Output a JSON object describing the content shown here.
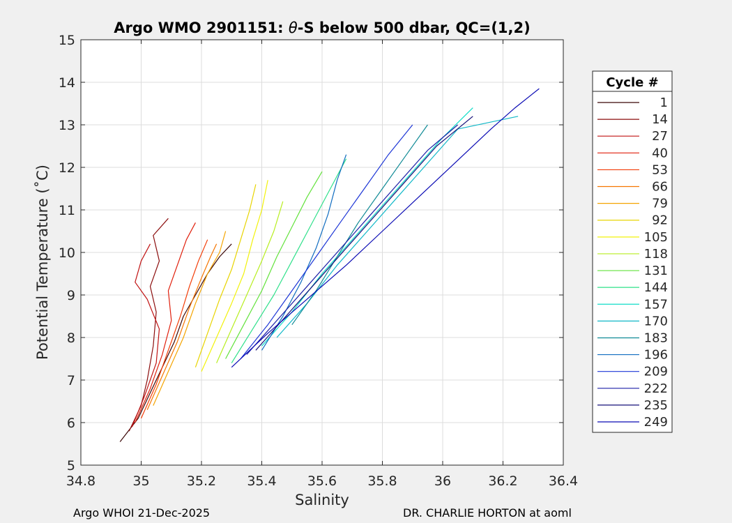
{
  "chart_data": {
    "type": "line",
    "title_prefix": "Argo WMO 2901151: ",
    "title_theta": "θ",
    "title_suffix": "-S below 500 dbar,  QC=(1,2)",
    "xlabel": "Salinity",
    "ylabel": "Potential Temperature (˚C)",
    "xlim": [
      34.8,
      36.4
    ],
    "ylim": [
      5,
      15
    ],
    "xticks": [
      34.8,
      35,
      35.2,
      35.4,
      35.6,
      35.8,
      36,
      36.2,
      36.4
    ],
    "yticks": [
      5,
      6,
      7,
      8,
      9,
      10,
      11,
      12,
      13,
      14,
      15
    ],
    "xtick_labels": [
      "34.8",
      "35",
      "35.2",
      "35.4",
      "35.6",
      "35.8",
      "36",
      "36.2",
      "36.4"
    ],
    "ytick_labels": [
      "5",
      "6",
      "7",
      "8",
      "9",
      "10",
      "11",
      "12",
      "13",
      "14",
      "15"
    ],
    "grid": true,
    "legend_title": "Cycle #",
    "legend_position": "right",
    "series": [
      {
        "name": "1",
        "color": "#3a0606",
        "points": [
          [
            34.93,
            5.55
          ],
          [
            34.99,
            6.1
          ],
          [
            35.03,
            6.7
          ],
          [
            35.07,
            7.3
          ],
          [
            35.11,
            7.9
          ],
          [
            35.14,
            8.5
          ],
          [
            35.18,
            9.0
          ],
          [
            35.22,
            9.5
          ],
          [
            35.26,
            9.9
          ],
          [
            35.3,
            10.2
          ]
        ]
      },
      {
        "name": "14",
        "color": "#8b0d0d",
        "points": [
          [
            34.96,
            5.8
          ],
          [
            35.0,
            6.4
          ],
          [
            35.02,
            7.0
          ],
          [
            35.04,
            7.8
          ],
          [
            35.05,
            8.6
          ],
          [
            35.03,
            9.2
          ],
          [
            35.06,
            9.8
          ],
          [
            35.04,
            10.4
          ],
          [
            35.09,
            10.8
          ]
        ]
      },
      {
        "name": "27",
        "color": "#c01212",
        "points": [
          [
            34.97,
            5.9
          ],
          [
            35.01,
            6.6
          ],
          [
            35.05,
            7.4
          ],
          [
            35.06,
            8.2
          ],
          [
            35.02,
            8.9
          ],
          [
            34.98,
            9.3
          ],
          [
            35.0,
            9.8
          ],
          [
            35.03,
            10.2
          ]
        ]
      },
      {
        "name": "40",
        "color": "#e01f0c",
        "points": [
          [
            34.98,
            6.0
          ],
          [
            35.03,
            6.8
          ],
          [
            35.07,
            7.6
          ],
          [
            35.1,
            8.4
          ],
          [
            35.09,
            9.1
          ],
          [
            35.12,
            9.7
          ],
          [
            35.15,
            10.3
          ],
          [
            35.18,
            10.7
          ]
        ]
      },
      {
        "name": "53",
        "color": "#f23c07",
        "points": [
          [
            35.0,
            6.1
          ],
          [
            35.05,
            6.9
          ],
          [
            35.09,
            7.7
          ],
          [
            35.13,
            8.5
          ],
          [
            35.16,
            9.2
          ],
          [
            35.19,
            9.8
          ],
          [
            35.22,
            10.3
          ]
        ]
      },
      {
        "name": "66",
        "color": "#f57500",
        "points": [
          [
            35.02,
            6.3
          ],
          [
            35.07,
            7.1
          ],
          [
            35.12,
            7.9
          ],
          [
            35.16,
            8.7
          ],
          [
            35.2,
            9.4
          ],
          [
            35.23,
            9.9
          ],
          [
            35.25,
            10.2
          ]
        ]
      },
      {
        "name": "79",
        "color": "#f4a400",
        "points": [
          [
            35.04,
            6.4
          ],
          [
            35.09,
            7.2
          ],
          [
            35.14,
            8.0
          ],
          [
            35.18,
            8.8
          ],
          [
            35.22,
            9.5
          ],
          [
            35.26,
            10.0
          ],
          [
            35.28,
            10.5
          ]
        ]
      },
      {
        "name": "92",
        "color": "#e8d400",
        "points": [
          [
            35.18,
            7.3
          ],
          [
            35.22,
            8.1
          ],
          [
            35.26,
            8.9
          ],
          [
            35.3,
            9.6
          ],
          [
            35.33,
            10.3
          ],
          [
            35.36,
            11.0
          ],
          [
            35.38,
            11.6
          ]
        ]
      },
      {
        "name": "105",
        "color": "#f2f20a",
        "points": [
          [
            35.2,
            7.2
          ],
          [
            35.25,
            8.0
          ],
          [
            35.3,
            8.8
          ],
          [
            35.34,
            9.5
          ],
          [
            35.37,
            10.3
          ],
          [
            35.4,
            11.0
          ],
          [
            35.42,
            11.7
          ]
        ]
      },
      {
        "name": "118",
        "color": "#b7ee1f",
        "points": [
          [
            35.25,
            7.4
          ],
          [
            35.3,
            8.2
          ],
          [
            35.35,
            9.0
          ],
          [
            35.4,
            9.8
          ],
          [
            35.44,
            10.5
          ],
          [
            35.47,
            11.2
          ]
        ]
      },
      {
        "name": "131",
        "color": "#62e23b",
        "points": [
          [
            35.28,
            7.5
          ],
          [
            35.34,
            8.3
          ],
          [
            35.4,
            9.1
          ],
          [
            35.45,
            9.9
          ],
          [
            35.5,
            10.6
          ],
          [
            35.55,
            11.3
          ],
          [
            35.6,
            11.9
          ]
        ]
      },
      {
        "name": "144",
        "color": "#2ee08a",
        "points": [
          [
            35.3,
            7.4
          ],
          [
            35.37,
            8.2
          ],
          [
            35.44,
            9.0
          ],
          [
            35.5,
            9.8
          ],
          [
            35.56,
            10.6
          ],
          [
            35.62,
            11.4
          ],
          [
            35.68,
            12.2
          ]
        ]
      },
      {
        "name": "157",
        "color": "#10ddc8",
        "points": [
          [
            35.4,
            7.8
          ],
          [
            35.5,
            8.6
          ],
          [
            35.6,
            9.5
          ],
          [
            35.7,
            10.3
          ],
          [
            35.8,
            11.1
          ],
          [
            35.9,
            11.9
          ],
          [
            36.0,
            12.7
          ],
          [
            36.1,
            13.4
          ]
        ]
      },
      {
        "name": "170",
        "color": "#10b8c8",
        "points": [
          [
            35.45,
            8.0
          ],
          [
            35.55,
            8.8
          ],
          [
            35.65,
            9.7
          ],
          [
            35.75,
            10.5
          ],
          [
            35.85,
            11.3
          ],
          [
            35.95,
            12.1
          ],
          [
            36.05,
            12.9
          ],
          [
            36.25,
            13.2
          ]
        ]
      },
      {
        "name": "183",
        "color": "#0f8a95",
        "points": [
          [
            35.5,
            8.3
          ],
          [
            35.58,
            9.1
          ],
          [
            35.65,
            9.9
          ],
          [
            35.72,
            10.7
          ],
          [
            35.8,
            11.5
          ],
          [
            35.88,
            12.3
          ],
          [
            35.95,
            13.0
          ]
        ]
      },
      {
        "name": "196",
        "color": "#0f6cc0",
        "points": [
          [
            35.4,
            7.7
          ],
          [
            35.47,
            8.5
          ],
          [
            35.53,
            9.3
          ],
          [
            35.58,
            10.1
          ],
          [
            35.62,
            10.9
          ],
          [
            35.65,
            11.7
          ],
          [
            35.68,
            12.3
          ]
        ]
      },
      {
        "name": "209",
        "color": "#1c35d6",
        "points": [
          [
            35.33,
            7.5
          ],
          [
            35.42,
            8.3
          ],
          [
            35.5,
            9.1
          ],
          [
            35.58,
            9.9
          ],
          [
            35.66,
            10.7
          ],
          [
            35.74,
            11.5
          ],
          [
            35.82,
            12.3
          ],
          [
            35.9,
            13.0
          ]
        ]
      },
      {
        "name": "222",
        "color": "#1b1ea6",
        "points": [
          [
            35.35,
            7.6
          ],
          [
            35.45,
            8.4
          ],
          [
            35.55,
            9.2
          ],
          [
            35.65,
            10.0
          ],
          [
            35.75,
            10.8
          ],
          [
            35.85,
            11.6
          ],
          [
            35.95,
            12.4
          ],
          [
            36.05,
            13.0
          ]
        ]
      },
      {
        "name": "235",
        "color": "#140f78",
        "points": [
          [
            35.38,
            7.7
          ],
          [
            35.48,
            8.5
          ],
          [
            35.58,
            9.3
          ],
          [
            35.68,
            10.1
          ],
          [
            35.78,
            10.9
          ],
          [
            35.88,
            11.7
          ],
          [
            35.98,
            12.5
          ],
          [
            36.1,
            13.2
          ]
        ]
      },
      {
        "name": "249",
        "color": "#0a0ab4",
        "points": [
          [
            35.3,
            7.3
          ],
          [
            35.42,
            8.1
          ],
          [
            35.55,
            8.9
          ],
          [
            35.68,
            9.7
          ],
          [
            35.8,
            10.5
          ],
          [
            35.92,
            11.3
          ],
          [
            36.04,
            12.1
          ],
          [
            36.16,
            12.9
          ],
          [
            36.24,
            13.4
          ],
          [
            36.32,
            13.85
          ]
        ]
      }
    ]
  },
  "footer": {
    "left": "Argo WHOI 21-Dec-2025",
    "right": "DR. CHARLIE HORTON at aoml"
  }
}
